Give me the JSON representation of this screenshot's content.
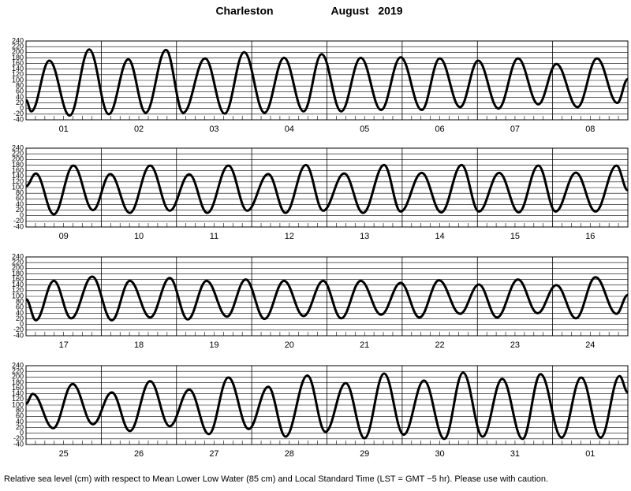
{
  "header": {
    "location": "Charleston",
    "period": "August   2019"
  },
  "chart_data": [
    {
      "type": "line",
      "color": "#000000",
      "grid": true,
      "categories": [
        "01",
        "02",
        "03",
        "04",
        "05",
        "06",
        "07",
        "08"
      ],
      "xlim": [
        0,
        8
      ],
      "ylim": [
        -40,
        240
      ],
      "yticks": [
        -40,
        -20,
        0,
        20,
        40,
        60,
        80,
        100,
        120,
        140,
        160,
        180,
        200,
        220,
        240
      ],
      "x": [
        0,
        0.07,
        0.31,
        0.58,
        0.84,
        1.1,
        1.36,
        1.59,
        1.86,
        2.09,
        2.38,
        2.64,
        2.9,
        3.17,
        3.43,
        3.69,
        3.93,
        4.19,
        4.45,
        4.72,
        4.98,
        5.26,
        5.5,
        5.77,
        6.01,
        6.28,
        6.54,
        6.81,
        7.05,
        7.33,
        7.59,
        7.86,
        8
      ],
      "values": [
        30,
        -10,
        170,
        -25,
        210,
        -20,
        175,
        -15,
        208,
        -15,
        178,
        -18,
        200,
        -15,
        180,
        -10,
        193,
        -10,
        180,
        -5,
        182,
        -5,
        178,
        5,
        170,
        0,
        178,
        15,
        158,
        5,
        178,
        20,
        105
      ]
    },
    {
      "type": "line",
      "color": "#000000",
      "grid": true,
      "categories": [
        "09",
        "10",
        "11",
        "12",
        "13",
        "14",
        "15",
        "16"
      ],
      "xlim": [
        0,
        8
      ],
      "ylim": [
        -40,
        240
      ],
      "yticks": [
        -40,
        -20,
        0,
        20,
        40,
        60,
        80,
        100,
        120,
        140,
        160,
        180,
        200,
        220,
        240
      ],
      "x": [
        0,
        0.13,
        0.37,
        0.63,
        0.89,
        1.12,
        1.38,
        1.65,
        1.91,
        2.17,
        2.41,
        2.69,
        2.94,
        3.22,
        3.45,
        3.72,
        3.95,
        4.23,
        4.48,
        4.76,
        4.98,
        5.26,
        5.52,
        5.79,
        6.02,
        6.29,
        6.55,
        6.81,
        7.04,
        7.31,
        7.57,
        7.85,
        8
      ],
      "values": [
        105,
        150,
        5,
        178,
        20,
        148,
        10,
        178,
        18,
        147,
        10,
        178,
        18,
        148,
        10,
        180,
        18,
        150,
        10,
        180,
        15,
        152,
        12,
        180,
        15,
        152,
        12,
        178,
        15,
        153,
        15,
        178,
        90
      ]
    },
    {
      "type": "line",
      "color": "#000000",
      "grid": true,
      "categories": [
        "17",
        "18",
        "19",
        "20",
        "21",
        "22",
        "23",
        "24"
      ],
      "xlim": [
        0,
        8
      ],
      "ylim": [
        -40,
        240
      ],
      "yticks": [
        -40,
        -20,
        0,
        20,
        40,
        60,
        80,
        100,
        120,
        140,
        160,
        180,
        200,
        220,
        240
      ],
      "x": [
        0,
        0.13,
        0.37,
        0.6,
        0.88,
        1.14,
        1.38,
        1.65,
        1.91,
        2.15,
        2.4,
        2.67,
        2.92,
        3.17,
        3.43,
        3.69,
        3.95,
        4.19,
        4.45,
        4.72,
        4.98,
        5.23,
        5.49,
        5.77,
        6.02,
        6.26,
        6.54,
        6.8,
        7.05,
        7.31,
        7.57,
        7.85,
        8
      ],
      "values": [
        90,
        15,
        155,
        22,
        170,
        15,
        155,
        25,
        165,
        18,
        155,
        28,
        160,
        20,
        155,
        30,
        155,
        22,
        155,
        35,
        148,
        25,
        157,
        38,
        142,
        25,
        160,
        40,
        140,
        22,
        168,
        38,
        105
      ]
    },
    {
      "type": "line",
      "color": "#000000",
      "grid": true,
      "categories": [
        "25",
        "26",
        "27",
        "28",
        "29",
        "30",
        "31",
        "01"
      ],
      "xlim": [
        0,
        8
      ],
      "ylim": [
        -40,
        240
      ],
      "yticks": [
        -40,
        -20,
        0,
        20,
        40,
        60,
        80,
        100,
        120,
        140,
        160,
        180,
        200,
        220,
        240
      ],
      "x": [
        0,
        0.09,
        0.36,
        0.62,
        0.89,
        1.14,
        1.38,
        1.65,
        1.91,
        2.17,
        2.43,
        2.69,
        2.96,
        3.22,
        3.45,
        3.74,
        3.98,
        4.25,
        4.5,
        4.76,
        5.02,
        5.29,
        5.56,
        5.81,
        6.07,
        6.33,
        6.6,
        6.84,
        7.12,
        7.38,
        7.64,
        7.89,
        8
      ],
      "values": [
        105,
        140,
        18,
        175,
        32,
        145,
        8,
        185,
        25,
        155,
        -3,
        198,
        15,
        165,
        -12,
        205,
        5,
        178,
        -18,
        212,
        -5,
        187,
        -20,
        215,
        -12,
        193,
        -20,
        210,
        -15,
        198,
        -15,
        203,
        145
      ]
    }
  ],
  "footer": "Relative sea level (cm) with respect to Mean Lower Low Water (85 cm) and Local Standard Time (LST = GMT −5 hr). Please use with caution."
}
